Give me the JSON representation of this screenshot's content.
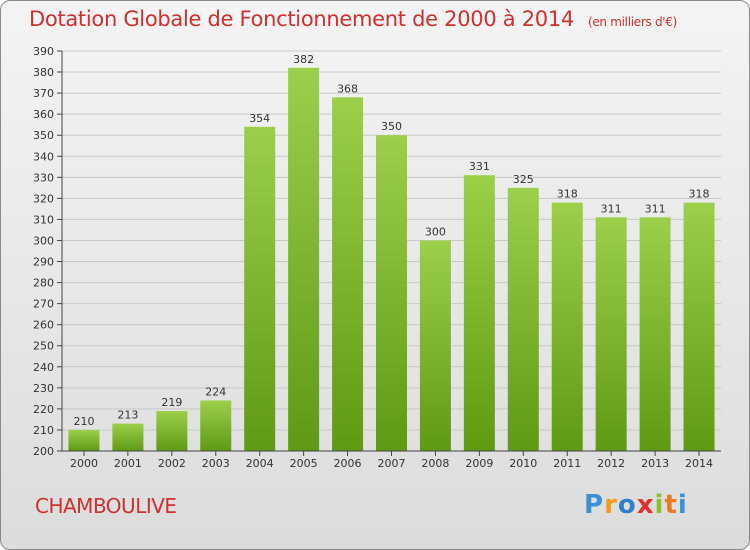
{
  "header": {
    "title": "Dotation Globale de Fonctionnement de 2000 à 2014",
    "unit": "(en milliers d'€)"
  },
  "footer": {
    "commune": "CHAMBOULIVE",
    "logo": [
      "P",
      "r",
      "o",
      "x",
      "i",
      "t",
      "i"
    ]
  },
  "colors": {
    "accent": "#d0302e",
    "bar_top": "#9ccf4a",
    "bar_bottom": "#5e9a12",
    "grid": "#c8c8c8"
  },
  "chart_data": {
    "type": "bar",
    "title": "Dotation Globale de Fonctionnement de 2000 à 2014",
    "categories": [
      "2000",
      "2001",
      "2002",
      "2003",
      "2004",
      "2005",
      "2006",
      "2007",
      "2008",
      "2009",
      "2010",
      "2011",
      "2012",
      "2013",
      "2014"
    ],
    "values": [
      210,
      213,
      219,
      224,
      354,
      382,
      368,
      350,
      300,
      331,
      325,
      318,
      311,
      311,
      318
    ],
    "xlabel": "",
    "ylabel": "",
    "ylim": [
      200,
      390
    ],
    "ytick_step": 10,
    "grid": true,
    "legend": "none"
  }
}
